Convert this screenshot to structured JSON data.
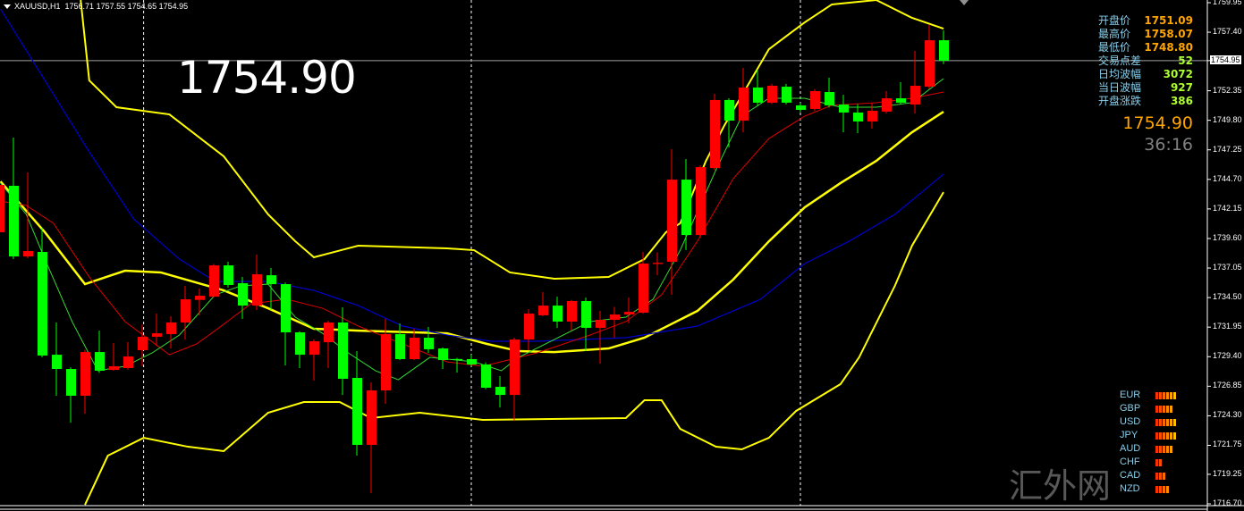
{
  "header": {
    "symbol": "XAUUSD,H1",
    "ohlc": "1756.71 1757.55 1754.65 1754.95"
  },
  "big_price": "1754.90",
  "info_panel": [
    {
      "label": "开盘价",
      "value": "1751.09",
      "kind": "v1"
    },
    {
      "label": "最高价",
      "value": "1758.07",
      "kind": "v1"
    },
    {
      "label": "最低价",
      "value": "1748.80",
      "kind": "v1"
    },
    {
      "label": "交易点差",
      "value": "52",
      "kind": "v2"
    },
    {
      "label": "日均波幅",
      "value": "3072",
      "kind": "v2"
    },
    {
      "label": "当日波幅",
      "value": "927",
      "kind": "v2"
    },
    {
      "label": "开盘涨跌",
      "value": "386",
      "kind": "v2"
    }
  ],
  "current_price": "1754.90",
  "bar_timer": "36:16",
  "currency_strength": [
    {
      "name": "EUR",
      "bars": 6
    },
    {
      "name": "GBP",
      "bars": 5
    },
    {
      "name": "USD",
      "bars": 6
    },
    {
      "name": "JPY",
      "bars": 6
    },
    {
      "name": "AUD",
      "bars": 5
    },
    {
      "name": "CHF",
      "bars": 2
    },
    {
      "name": "CAD",
      "bars": 3
    },
    {
      "name": "NZD",
      "bars": 4
    }
  ],
  "watermark": "汇外网",
  "colors": {
    "background": "#000000",
    "up_candle": "#ff0000",
    "down_candle": "#00ff00",
    "bands": "#ffff00",
    "ma_long": "#0000cd",
    "ma_mid": "#dd0000",
    "ma_fast": "#33dd33",
    "grid": "#ffffff"
  },
  "chart_data": {
    "type": "candlestick",
    "price_axis": {
      "min": 1716.7,
      "max": 1759.95,
      "ticks": [
        "1759.95",
        "1757.40",
        "1754.95",
        "1752.35",
        "1749.80",
        "1747.25",
        "1744.70",
        "1742.15",
        "1739.60",
        "1737.05",
        "1734.50",
        "1731.95",
        "1729.40",
        "1726.85",
        "1724.30",
        "1721.75",
        "1719.25",
        "1716.70"
      ],
      "current_tick": "1754.95"
    },
    "current_line": 1754.95,
    "period_separators_at_bar": [
      10.1,
      33,
      56
    ],
    "candles_ohlc": [
      [
        1740.14,
        1744.4,
        1740.0,
        1744.22
      ],
      [
        1744.15,
        1748.31,
        1737.82,
        1738.05
      ],
      [
        1738.05,
        1745.3,
        1737.9,
        1738.52
      ],
      [
        1738.44,
        1740.52,
        1729.34,
        1729.5
      ],
      [
        1729.57,
        1732.35,
        1726.03,
        1728.34
      ],
      [
        1728.34,
        1728.5,
        1723.71,
        1726.03
      ],
      [
        1726.03,
        1730.0,
        1724.48,
        1729.8
      ],
      [
        1729.8,
        1731.65,
        1728.0,
        1728.19
      ],
      [
        1728.26,
        1730.58,
        1728.2,
        1728.57
      ],
      [
        1728.42,
        1730.66,
        1728.3,
        1729.42
      ],
      [
        1729.96,
        1732.19,
        1728.57,
        1731.12
      ],
      [
        1731.12,
        1733.12,
        1730.34,
        1731.42
      ],
      [
        1731.35,
        1732.89,
        1730.11,
        1732.35
      ],
      [
        1732.35,
        1735.51,
        1730.88,
        1734.35
      ],
      [
        1734.3,
        1735.28,
        1732.97,
        1734.66
      ],
      [
        1734.58,
        1737.4,
        1734.5,
        1737.28
      ],
      [
        1737.28,
        1737.59,
        1735.36,
        1735.59
      ],
      [
        1735.74,
        1736.28,
        1732.66,
        1733.81
      ],
      [
        1733.81,
        1738.21,
        1733.43,
        1736.51
      ],
      [
        1736.43,
        1737.05,
        1733.43,
        1735.66
      ],
      [
        1735.66,
        1735.8,
        1728.65,
        1731.5
      ],
      [
        1731.5,
        1731.6,
        1728.42,
        1729.57
      ],
      [
        1729.57,
        1730.9,
        1727.34,
        1730.73
      ],
      [
        1730.65,
        1732.5,
        1728.42,
        1732.35
      ],
      [
        1732.35,
        1733.66,
        1726.1,
        1727.49
      ],
      [
        1727.57,
        1729.88,
        1720.86,
        1721.79
      ],
      [
        1721.79,
        1727.18,
        1717.62,
        1726.49
      ],
      [
        1726.49,
        1732.66,
        1725.33,
        1731.35
      ],
      [
        1731.35,
        1732.27,
        1729.1,
        1729.19
      ],
      [
        1729.19,
        1731.81,
        1729.1,
        1731.04
      ],
      [
        1731.04,
        1731.96,
        1729.73,
        1730.04
      ],
      [
        1730.11,
        1730.2,
        1728.34,
        1729.11
      ],
      [
        1729.2,
        1729.3,
        1728.03,
        1729.11
      ],
      [
        1729.19,
        1729.57,
        1728.6,
        1728.73
      ],
      [
        1728.73,
        1728.9,
        1726.6,
        1726.72
      ],
      [
        1726.8,
        1727.72,
        1725.02,
        1726.1
      ],
      [
        1726.1,
        1731.04,
        1723.87,
        1730.88
      ],
      [
        1730.88,
        1733.5,
        1729.96,
        1733.12
      ],
      [
        1732.97,
        1734.97,
        1732.9,
        1733.81
      ],
      [
        1733.81,
        1734.58,
        1731.89,
        1732.43
      ],
      [
        1732.43,
        1734.3,
        1731.65,
        1734.2
      ],
      [
        1734.2,
        1734.5,
        1729.88,
        1731.89
      ],
      [
        1731.89,
        1733.35,
        1728.8,
        1732.58
      ],
      [
        1732.58,
        1733.7,
        1731.04,
        1733.04
      ],
      [
        1733.04,
        1734.5,
        1732.27,
        1733.27
      ],
      [
        1733.2,
        1738.44,
        1733.1,
        1737.44
      ],
      [
        1737.4,
        1738.4,
        1736.43,
        1737.5
      ],
      [
        1737.59,
        1747.31,
        1734.74,
        1744.68
      ],
      [
        1744.68,
        1746.46,
        1738.6,
        1739.9
      ],
      [
        1739.9,
        1745.9,
        1739.67,
        1745.76
      ],
      [
        1745.68,
        1752.09,
        1745.5,
        1751.55
      ],
      [
        1751.55,
        1751.7,
        1747.46,
        1749.77
      ],
      [
        1749.77,
        1754.32,
        1748.77,
        1752.63
      ],
      [
        1752.63,
        1754.17,
        1751.0,
        1751.32
      ],
      [
        1751.32,
        1752.94,
        1751.2,
        1752.78
      ],
      [
        1752.7,
        1752.94,
        1751.16,
        1751.32
      ],
      [
        1751.09,
        1751.3,
        1750.5,
        1750.7
      ],
      [
        1750.78,
        1752.5,
        1750.6,
        1752.32
      ],
      [
        1752.24,
        1753.47,
        1750.9,
        1751.09
      ],
      [
        1751.16,
        1752.0,
        1748.77,
        1750.47
      ],
      [
        1750.47,
        1751.2,
        1748.69,
        1749.7
      ],
      [
        1749.7,
        1751.3,
        1749.08,
        1750.62
      ],
      [
        1750.55,
        1752.32,
        1750.4,
        1751.7
      ],
      [
        1751.7,
        1753.09,
        1751.2,
        1751.32
      ],
      [
        1751.16,
        1755.79,
        1750.39,
        1752.78
      ],
      [
        1752.7,
        1758.02,
        1752.5,
        1756.71
      ],
      [
        1756.71,
        1757.55,
        1754.65,
        1754.95
      ]
    ],
    "indicators": [
      {
        "id": "bb-upper",
        "color": "#ffff00",
        "width": 2,
        "points": [
          [
            5.7,
            1760.18
          ],
          [
            6.3,
            1753.24
          ],
          [
            8.2,
            1750.93
          ],
          [
            11.9,
            1750.31
          ],
          [
            15.7,
            1746.69
          ],
          [
            18.8,
            1741.68
          ],
          [
            20.7,
            1739.36
          ],
          [
            22.0,
            1737.98
          ],
          [
            25.1,
            1738.98
          ],
          [
            31.3,
            1738.75
          ],
          [
            33.2,
            1738.59
          ],
          [
            35.7,
            1736.67
          ],
          [
            38.8,
            1736.13
          ],
          [
            42.6,
            1736.28
          ],
          [
            45.1,
            1737.82
          ],
          [
            46.6,
            1740.14
          ],
          [
            47.6,
            1740.91
          ],
          [
            49.4,
            1746.3
          ],
          [
            50.7,
            1749.39
          ],
          [
            53.8,
            1755.94
          ],
          [
            56.3,
            1758.25
          ],
          [
            58.2,
            1759.8
          ],
          [
            61.3,
            1760.18
          ],
          [
            63.8,
            1758.64
          ],
          [
            66.0,
            1757.71
          ]
        ]
      },
      {
        "id": "bb-middle",
        "color": "#ffff00",
        "width": 2.5,
        "points": [
          [
            0.1,
            1744.53
          ],
          [
            3.2,
            1740.14
          ],
          [
            6.0,
            1735.66
          ],
          [
            8.8,
            1736.82
          ],
          [
            11.3,
            1736.67
          ],
          [
            15.7,
            1735.12
          ],
          [
            18.8,
            1733.58
          ],
          [
            22.0,
            1731.81
          ],
          [
            25.1,
            1731.65
          ],
          [
            31.3,
            1731.42
          ],
          [
            34.1,
            1730.5
          ],
          [
            36.3,
            1729.88
          ],
          [
            38.8,
            1729.8
          ],
          [
            42.6,
            1730.11
          ],
          [
            45.1,
            1731.04
          ],
          [
            48.8,
            1733.35
          ],
          [
            51.3,
            1736.05
          ],
          [
            53.8,
            1739.36
          ],
          [
            56.3,
            1742.29
          ],
          [
            58.8,
            1744.38
          ],
          [
            61.3,
            1746.3
          ],
          [
            63.8,
            1748.77
          ],
          [
            66.0,
            1750.54
          ]
        ]
      },
      {
        "id": "bb-lower",
        "color": "#ffff00",
        "width": 2,
        "points": [
          [
            6.0,
            1716.62
          ],
          [
            7.6,
            1720.86
          ],
          [
            10.1,
            1722.4
          ],
          [
            13.2,
            1721.63
          ],
          [
            15.7,
            1721.25
          ],
          [
            18.8,
            1724.56
          ],
          [
            21.3,
            1725.49
          ],
          [
            23.8,
            1725.49
          ],
          [
            26.0,
            1724.1
          ],
          [
            29.4,
            1724.56
          ],
          [
            33.8,
            1723.95
          ],
          [
            43.8,
            1724.1
          ],
          [
            45.1,
            1725.64
          ],
          [
            46.3,
            1725.64
          ],
          [
            47.6,
            1723.17
          ],
          [
            50.1,
            1721.63
          ],
          [
            51.9,
            1721.4
          ],
          [
            53.8,
            1722.4
          ],
          [
            55.7,
            1724.72
          ],
          [
            58.8,
            1727.03
          ],
          [
            60.1,
            1729.34
          ],
          [
            62.6,
            1735.51
          ],
          [
            63.8,
            1738.98
          ],
          [
            66.0,
            1743.6
          ]
        ]
      },
      {
        "id": "ma-long",
        "color": "#0000cd",
        "width": 1.2,
        "points": [
          [
            0.1,
            1759.41
          ],
          [
            3.2,
            1753.24
          ],
          [
            6.3,
            1747.07
          ],
          [
            9.4,
            1741.29
          ],
          [
            12.6,
            1737.82
          ],
          [
            15.1,
            1735.89
          ],
          [
            18.8,
            1735.89
          ],
          [
            22.0,
            1735.12
          ],
          [
            25.1,
            1733.81
          ],
          [
            28.2,
            1732.04
          ],
          [
            31.3,
            1731.27
          ],
          [
            34.4,
            1730.73
          ],
          [
            37.6,
            1730.73
          ],
          [
            43.8,
            1731.04
          ],
          [
            48.8,
            1732.04
          ],
          [
            53.2,
            1734.35
          ],
          [
            56.3,
            1737.44
          ],
          [
            59.4,
            1739.36
          ],
          [
            62.6,
            1741.68
          ],
          [
            66.0,
            1745.15
          ]
        ]
      },
      {
        "id": "ma-mid",
        "color": "#dd0000",
        "width": 1,
        "points": [
          [
            0.1,
            1742.83
          ],
          [
            1.9,
            1742.45
          ],
          [
            3.8,
            1740.91
          ],
          [
            6.3,
            1736.28
          ],
          [
            8.8,
            1732.43
          ],
          [
            11.9,
            1729.57
          ],
          [
            13.8,
            1730.5
          ],
          [
            15.1,
            1731.65
          ],
          [
            17.6,
            1733.97
          ],
          [
            20.1,
            1734.35
          ],
          [
            22.6,
            1733.58
          ],
          [
            25.1,
            1732.04
          ],
          [
            28.2,
            1730.5
          ],
          [
            31.3,
            1728.96
          ],
          [
            33.8,
            1728.57
          ],
          [
            37.6,
            1729.73
          ],
          [
            41.3,
            1731.27
          ],
          [
            43.8,
            1732.43
          ],
          [
            46.3,
            1734.74
          ],
          [
            48.8,
            1739.36
          ],
          [
            51.3,
            1744.76
          ],
          [
            53.8,
            1748.23
          ],
          [
            56.3,
            1750.16
          ],
          [
            58.2,
            1751.09
          ],
          [
            61.3,
            1751.32
          ],
          [
            63.8,
            1751.7
          ],
          [
            66.0,
            1752.24
          ]
        ]
      },
      {
        "id": "ma-fast",
        "color": "#33dd33",
        "width": 1,
        "points": [
          [
            0.1,
            1744.38
          ],
          [
            1.9,
            1741.68
          ],
          [
            3.2,
            1737.82
          ],
          [
            5.1,
            1732.43
          ],
          [
            6.9,
            1728.19
          ],
          [
            8.8,
            1728.57
          ],
          [
            10.7,
            1729.73
          ],
          [
            12.6,
            1731.27
          ],
          [
            15.1,
            1734.74
          ],
          [
            16.9,
            1735.51
          ],
          [
            18.8,
            1735.66
          ],
          [
            20.7,
            1732.81
          ],
          [
            22.6,
            1731.42
          ],
          [
            24.4,
            1729.73
          ],
          [
            26.3,
            1728.19
          ],
          [
            27.9,
            1727.41
          ],
          [
            30.1,
            1729.34
          ],
          [
            33.2,
            1728.96
          ],
          [
            35.1,
            1728.19
          ],
          [
            36.3,
            1729.34
          ],
          [
            38.8,
            1730.88
          ],
          [
            41.3,
            1732.43
          ],
          [
            43.8,
            1732.81
          ],
          [
            45.7,
            1734.35
          ],
          [
            47.6,
            1738.59
          ],
          [
            50.1,
            1745.53
          ],
          [
            51.9,
            1750.16
          ],
          [
            53.8,
            1751.7
          ],
          [
            56.3,
            1751.7
          ],
          [
            58.8,
            1750.93
          ],
          [
            61.3,
            1750.93
          ],
          [
            63.8,
            1751.32
          ],
          [
            66.0,
            1753.4
          ]
        ]
      }
    ]
  }
}
